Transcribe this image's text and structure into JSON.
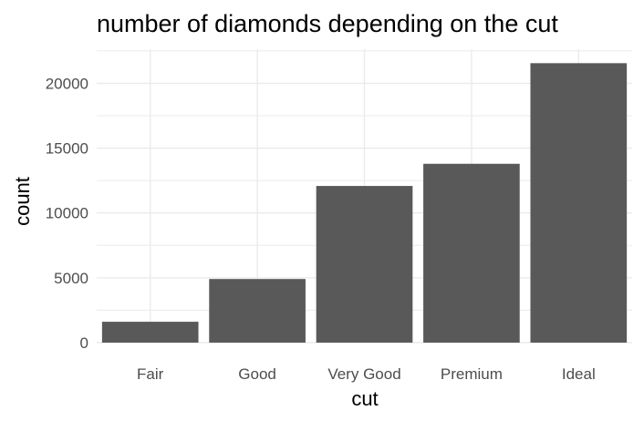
{
  "chart_data": {
    "type": "bar",
    "title": "number of diamonds depending on the cut",
    "xlabel": "cut",
    "ylabel": "count",
    "categories": [
      "Fair",
      "Good",
      "Very Good",
      "Premium",
      "Ideal"
    ],
    "values": [
      1610,
      4906,
      12082,
      13791,
      21551
    ],
    "ylim": [
      0,
      22628
    ],
    "yticks": [
      0,
      5000,
      10000,
      15000,
      20000
    ],
    "grid": true,
    "bar_color": "#595959",
    "grid_color": "#ebebeb",
    "background": "#ffffff"
  }
}
